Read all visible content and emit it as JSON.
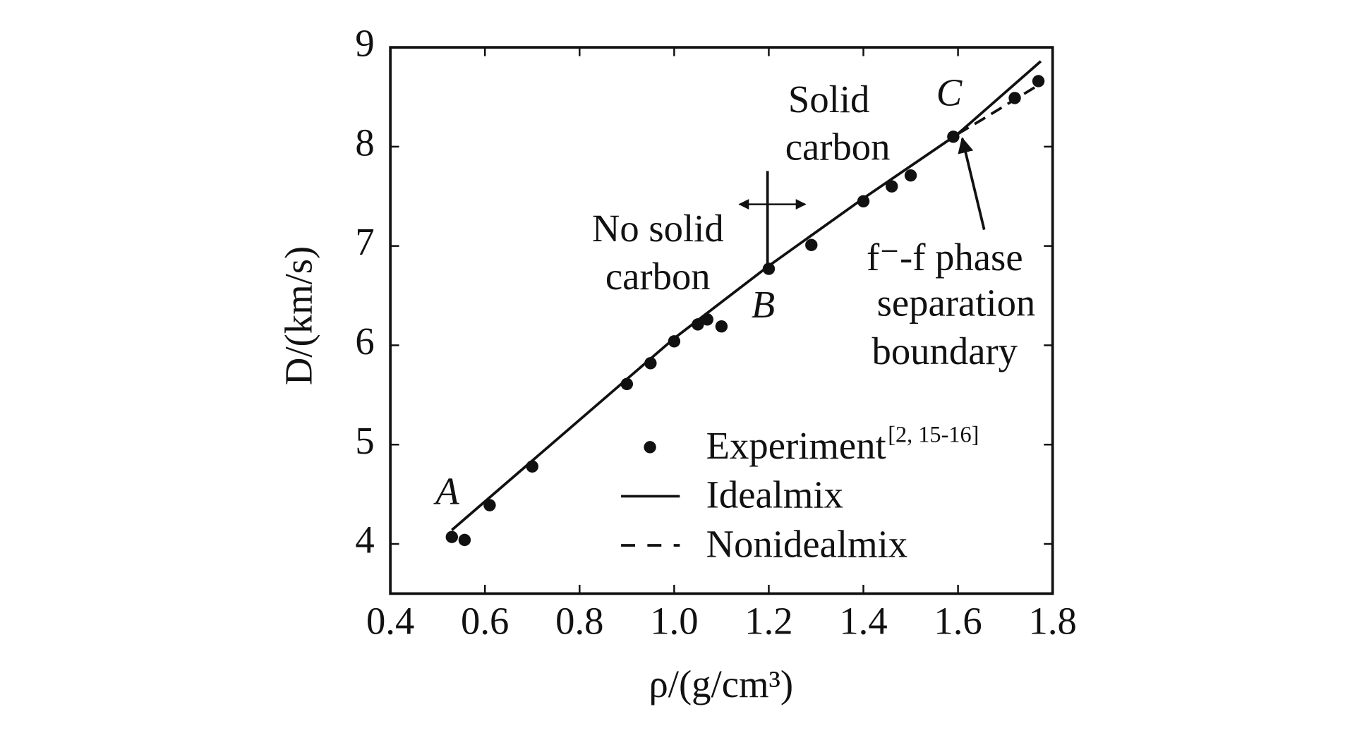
{
  "chart_data": {
    "type": "scatter-line",
    "x_label": "ρ/(g/cm³)",
    "y_label": "D/(km/s)",
    "xlim": [
      0.4,
      1.8
    ],
    "ylim": [
      3.5,
      9
    ],
    "xticks": [
      0.4,
      0.6,
      0.8,
      {
        "value": 1,
        "label": "1.0"
      },
      1.2,
      1.4,
      1.6,
      1.8
    ],
    "yticks": [
      4,
      5,
      6,
      7,
      8,
      9
    ],
    "grid": false,
    "series": [
      {
        "name": "Experiment",
        "reference": "[2, 15-16]",
        "type": "scatter",
        "color": "#111111",
        "x": [
          0.53,
          0.557,
          0.61,
          0.7,
          0.9,
          0.95,
          1.0,
          1.05,
          1.07,
          1.1,
          1.2,
          1.29,
          1.4,
          1.46,
          1.5,
          1.59,
          1.72,
          1.77
        ],
        "values": [
          4.07,
          4.04,
          4.39,
          4.78,
          5.61,
          5.82,
          6.04,
          6.21,
          6.26,
          6.19,
          6.77,
          7.01,
          7.45,
          7.6,
          7.71,
          8.1,
          8.49,
          8.66
        ]
      },
      {
        "name": "Idealmix",
        "type": "line",
        "dashed": false,
        "color": "#111111",
        "x": [
          0.53,
          1.0,
          1.2,
          1.4,
          1.6,
          1.775
        ],
        "values": [
          4.14,
          6.07,
          6.8,
          7.48,
          8.13,
          8.86
        ]
      },
      {
        "name": "Nonidealmix",
        "type": "line",
        "dashed": true,
        "color": "#111111",
        "x": [
          1.6,
          1.65,
          1.77
        ],
        "values": [
          8.13,
          8.27,
          8.62
        ]
      }
    ],
    "annotations": {
      "point_a": "A",
      "point_b": "B",
      "point_c": "C",
      "no_solid_carbon": [
        "No solid",
        "carbon"
      ],
      "solid_carbon": [
        "Solid",
        "carbon"
      ],
      "boundary": [
        "f⁻-f phase",
        "separation",
        "boundary"
      ]
    }
  }
}
